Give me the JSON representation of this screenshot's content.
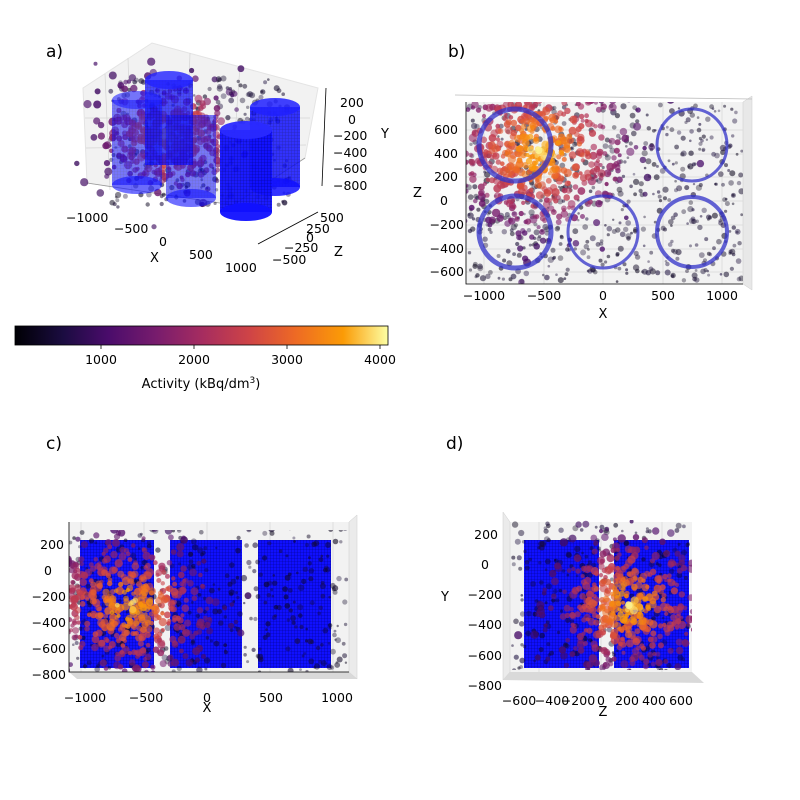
{
  "chart_data": [
    {
      "type": "scatter",
      "panel_label": "a)",
      "view": "3d-perspective",
      "xlabel": "X",
      "ylabel": "Y",
      "zlabel": "Z",
      "x_ticks": [
        "−1000",
        "−500",
        "0",
        "500",
        "1000"
      ],
      "y_ticks": [
        "200",
        "0",
        "−200",
        "−400",
        "−600",
        "−800"
      ],
      "z_ticks": [
        "500",
        "250",
        "0",
        "−250",
        "−500"
      ],
      "xlim": [
        -1100,
        1100
      ],
      "ylim": [
        -850,
        300
      ],
      "zlim": [
        -650,
        650
      ],
      "cylinders": [
        {
          "x": -750,
          "z": 350,
          "radius": 280,
          "y_range": [
            -780,
            180
          ]
        },
        {
          "x": -700,
          "z": -350,
          "radius": 280,
          "y_range": [
            -780,
            180
          ]
        },
        {
          "x": 0,
          "z": -350,
          "radius": 280,
          "y_range": [
            -780,
            180
          ]
        },
        {
          "x": 750,
          "z": 350,
          "radius": 280,
          "y_range": [
            -780,
            180
          ]
        },
        {
          "x": 750,
          "z": -350,
          "radius": 280,
          "y_range": [
            -780,
            180
          ]
        }
      ]
    },
    {
      "type": "scatter",
      "panel_label": "b)",
      "view": "top (X–Z plane)",
      "xlabel": "X",
      "ylabel": "Z",
      "x_ticks": [
        "−1000",
        "−500",
        "0",
        "500",
        "1000"
      ],
      "y_ticks": [
        "600",
        "400",
        "200",
        "0",
        "−200",
        "−400",
        "−600"
      ],
      "xlim": [
        -1150,
        1150
      ],
      "ylim": [
        -700,
        750
      ]
    },
    {
      "type": "scatter",
      "panel_label": "c)",
      "view": "front (X–Y plane)",
      "xlabel": "X",
      "ylabel": "",
      "x_ticks": [
        "−1000",
        "−500",
        "0",
        "500",
        "1000"
      ],
      "y_ticks": [
        "200",
        "0",
        "−200",
        "−400",
        "−600",
        "−800"
      ],
      "xlim": [
        -1100,
        1150
      ],
      "ylim": [
        -850,
        330
      ]
    },
    {
      "type": "scatter",
      "panel_label": "d)",
      "view": "side (Z–Y plane)",
      "xlabel": "Z",
      "ylabel": "Y",
      "x_ticks": [
        "−600",
        "−400",
        "−200",
        "0",
        "200",
        "400",
        "600"
      ],
      "y_ticks": [
        "200",
        "0",
        "−200",
        "−400",
        "−600",
        "−800"
      ],
      "xlim": [
        -700,
        700
      ],
      "ylim": [
        -850,
        330
      ]
    }
  ],
  "colorbar": {
    "label": "Activity (kBq/dm",
    "label_superscript": "3",
    "label_suffix": ")",
    "range": [
      100,
      4100
    ],
    "ticks": [
      "1000",
      "2000",
      "3000",
      "4000"
    ],
    "colormap": "inferno",
    "hotspot_activity": 4000,
    "background_activity": 400
  },
  "colors": {
    "cylinder": "#0000ff",
    "pane": "#f2f2f2",
    "grid": "#d4d4d4"
  }
}
